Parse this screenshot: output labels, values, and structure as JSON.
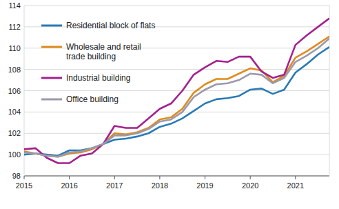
{
  "chart_data": {
    "type": "line",
    "x": [
      2015,
      2015.25,
      2015.5,
      2015.75,
      2016,
      2016.25,
      2016.5,
      2016.75,
      2017,
      2017.25,
      2017.5,
      2017.75,
      2018,
      2018.25,
      2018.5,
      2018.75,
      2019,
      2019.25,
      2019.5,
      2019.75,
      2020,
      2020.25,
      2020.5,
      2020.75,
      2021,
      2021.25,
      2021.5,
      2021.75
    ],
    "xlim": [
      2015,
      2021.75
    ],
    "xticks": [
      2015,
      2016,
      2017,
      2018,
      2019,
      2020,
      2021
    ],
    "ylim": [
      98,
      114
    ],
    "yticks": [
      98,
      100,
      102,
      104,
      106,
      108,
      110,
      112,
      114
    ],
    "grid": true,
    "legend": "top-left",
    "series": [
      {
        "name": "Residential block of flats",
        "color": "#2a7ab5",
        "values": [
          100.0,
          100.1,
          100.0,
          99.9,
          100.4,
          100.4,
          100.6,
          101.0,
          101.4,
          101.5,
          101.7,
          102.0,
          102.6,
          102.9,
          103.4,
          104.1,
          104.8,
          105.2,
          105.3,
          105.5,
          106.1,
          106.2,
          105.7,
          106.1,
          107.7,
          108.5,
          109.4,
          110.1
        ]
      },
      {
        "name": "Wholesale and retail trade building",
        "color": "#e08a1e",
        "values": [
          100.3,
          100.1,
          99.9,
          99.8,
          100.1,
          100.2,
          100.5,
          101.0,
          102.0,
          101.9,
          102.1,
          102.5,
          103.3,
          103.5,
          104.3,
          105.8,
          106.6,
          107.1,
          107.1,
          107.6,
          108.1,
          107.9,
          106.8,
          107.4,
          109.1,
          109.7,
          110.4,
          111.1
        ]
      },
      {
        "name": "Industrial building",
        "color": "#a3218e",
        "values": [
          100.5,
          100.6,
          99.7,
          99.2,
          99.2,
          99.9,
          100.1,
          101.0,
          102.7,
          102.5,
          102.5,
          103.4,
          104.3,
          104.8,
          106.0,
          107.5,
          108.2,
          108.8,
          108.7,
          109.2,
          109.2,
          107.8,
          107.2,
          107.5,
          110.3,
          111.2,
          112.0,
          112.8
        ]
      },
      {
        "name": "Office building",
        "color": "#9a9aac",
        "values": [
          100.2,
          100.1,
          99.9,
          99.8,
          100.2,
          100.3,
          100.6,
          101.0,
          101.8,
          101.8,
          102.0,
          102.4,
          103.1,
          103.3,
          104.0,
          105.4,
          106.1,
          106.6,
          106.7,
          107.0,
          107.6,
          107.5,
          106.7,
          107.2,
          108.7,
          109.3,
          110.0,
          110.9
        ]
      }
    ]
  }
}
